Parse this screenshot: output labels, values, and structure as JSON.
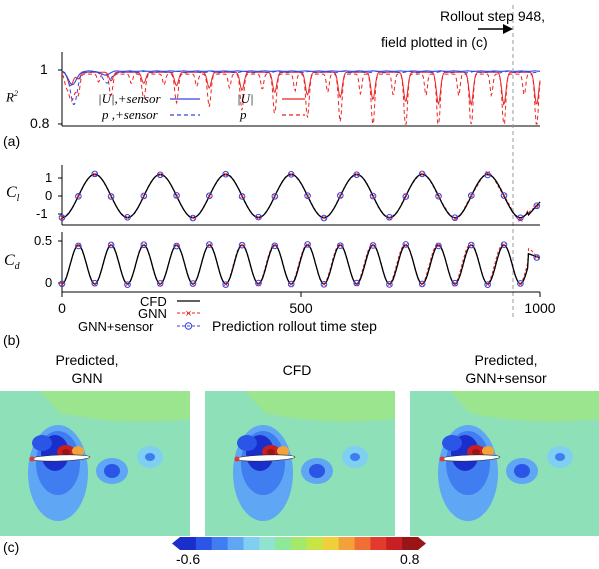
{
  "annotation": {
    "line1": "Rollout step 948,",
    "line2": "field plotted in (c)",
    "step": 948
  },
  "panel_labels": {
    "a": "(a)",
    "b": "(b)",
    "c": "(c)"
  },
  "colors": {
    "sensor": "#3344dd",
    "gnn": "#ee2222",
    "cfd": "#000000",
    "marker": "#3344dd"
  },
  "chart_data": [
    {
      "type": "line",
      "id": "r2",
      "ylabel": "R²",
      "ytick_labels": [
        "1",
        "0.8"
      ],
      "ylim": [
        0.8,
        1.0
      ],
      "xlim": [
        0,
        1000
      ],
      "legend": [
        {
          "label": "|U|,+sensor",
          "color": "#3344dd",
          "dash": "solid"
        },
        {
          "label": "p ,+sensor",
          "color": "#3344dd",
          "dash": "dashed"
        },
        {
          "label": "|U|",
          "color": "#ee2222",
          "dash": "solid"
        },
        {
          "label": "p",
          "color": "#ee2222",
          "dash": "dashed"
        }
      ],
      "series_notes": {
        "U_sensor": {
          "min": 0.94,
          "dip_at": 22,
          "settle": 0.995
        },
        "p_sensor": {
          "min": 0.875,
          "dip_at": 25,
          "settle": 0.995
        },
        "U": {
          "min_late": 0.86,
          "settle": 0.99
        },
        "p": {
          "min_late": 0.8,
          "settle": 0.98
        }
      }
    },
    {
      "type": "line",
      "id": "cl",
      "ylabel": "Cl",
      "ytick_labels": [
        "1",
        "0",
        "-1"
      ],
      "ylim": [
        -1.5,
        1.5
      ],
      "xlim": [
        0,
        1000
      ],
      "amplitude": 1.2,
      "period": 137
    },
    {
      "type": "line",
      "id": "cd",
      "ylabel": "Cd",
      "ytick_labels": [
        "0.5",
        "0"
      ],
      "ylim": [
        -0.1,
        0.6
      ],
      "xlim": [
        0,
        1000
      ],
      "period": 68.5,
      "xlabel": "Prediction rollout time step",
      "xtick_labels": [
        "0",
        "500",
        "1000"
      ],
      "legend": [
        {
          "label": "CFD",
          "style": "solid",
          "color": "#000000"
        },
        {
          "label": "GNN",
          "style": "x",
          "color": "#ee2222"
        },
        {
          "label": "GNN+sensor",
          "style": "o",
          "color": "#3344dd"
        }
      ]
    }
  ],
  "fields": {
    "titles": [
      {
        "line1": "Predicted,",
        "line2": "GNN"
      },
      {
        "line1": "CFD",
        "line2": ""
      },
      {
        "line1": "Predicted,",
        "line2": "GNN+sensor"
      }
    ],
    "colorbar": {
      "min_label": "-0.6",
      "max_label": "0.8",
      "colors": [
        "#1a2ecc",
        "#2a55e6",
        "#3f7df0",
        "#5fa6f4",
        "#7fd0f0",
        "#8fe3cf",
        "#8de89a",
        "#a4ea6a",
        "#c8e548",
        "#f0d03a",
        "#f3a23a",
        "#ef6f35",
        "#e33a2e",
        "#c81f22",
        "#9a1616"
      ]
    }
  }
}
